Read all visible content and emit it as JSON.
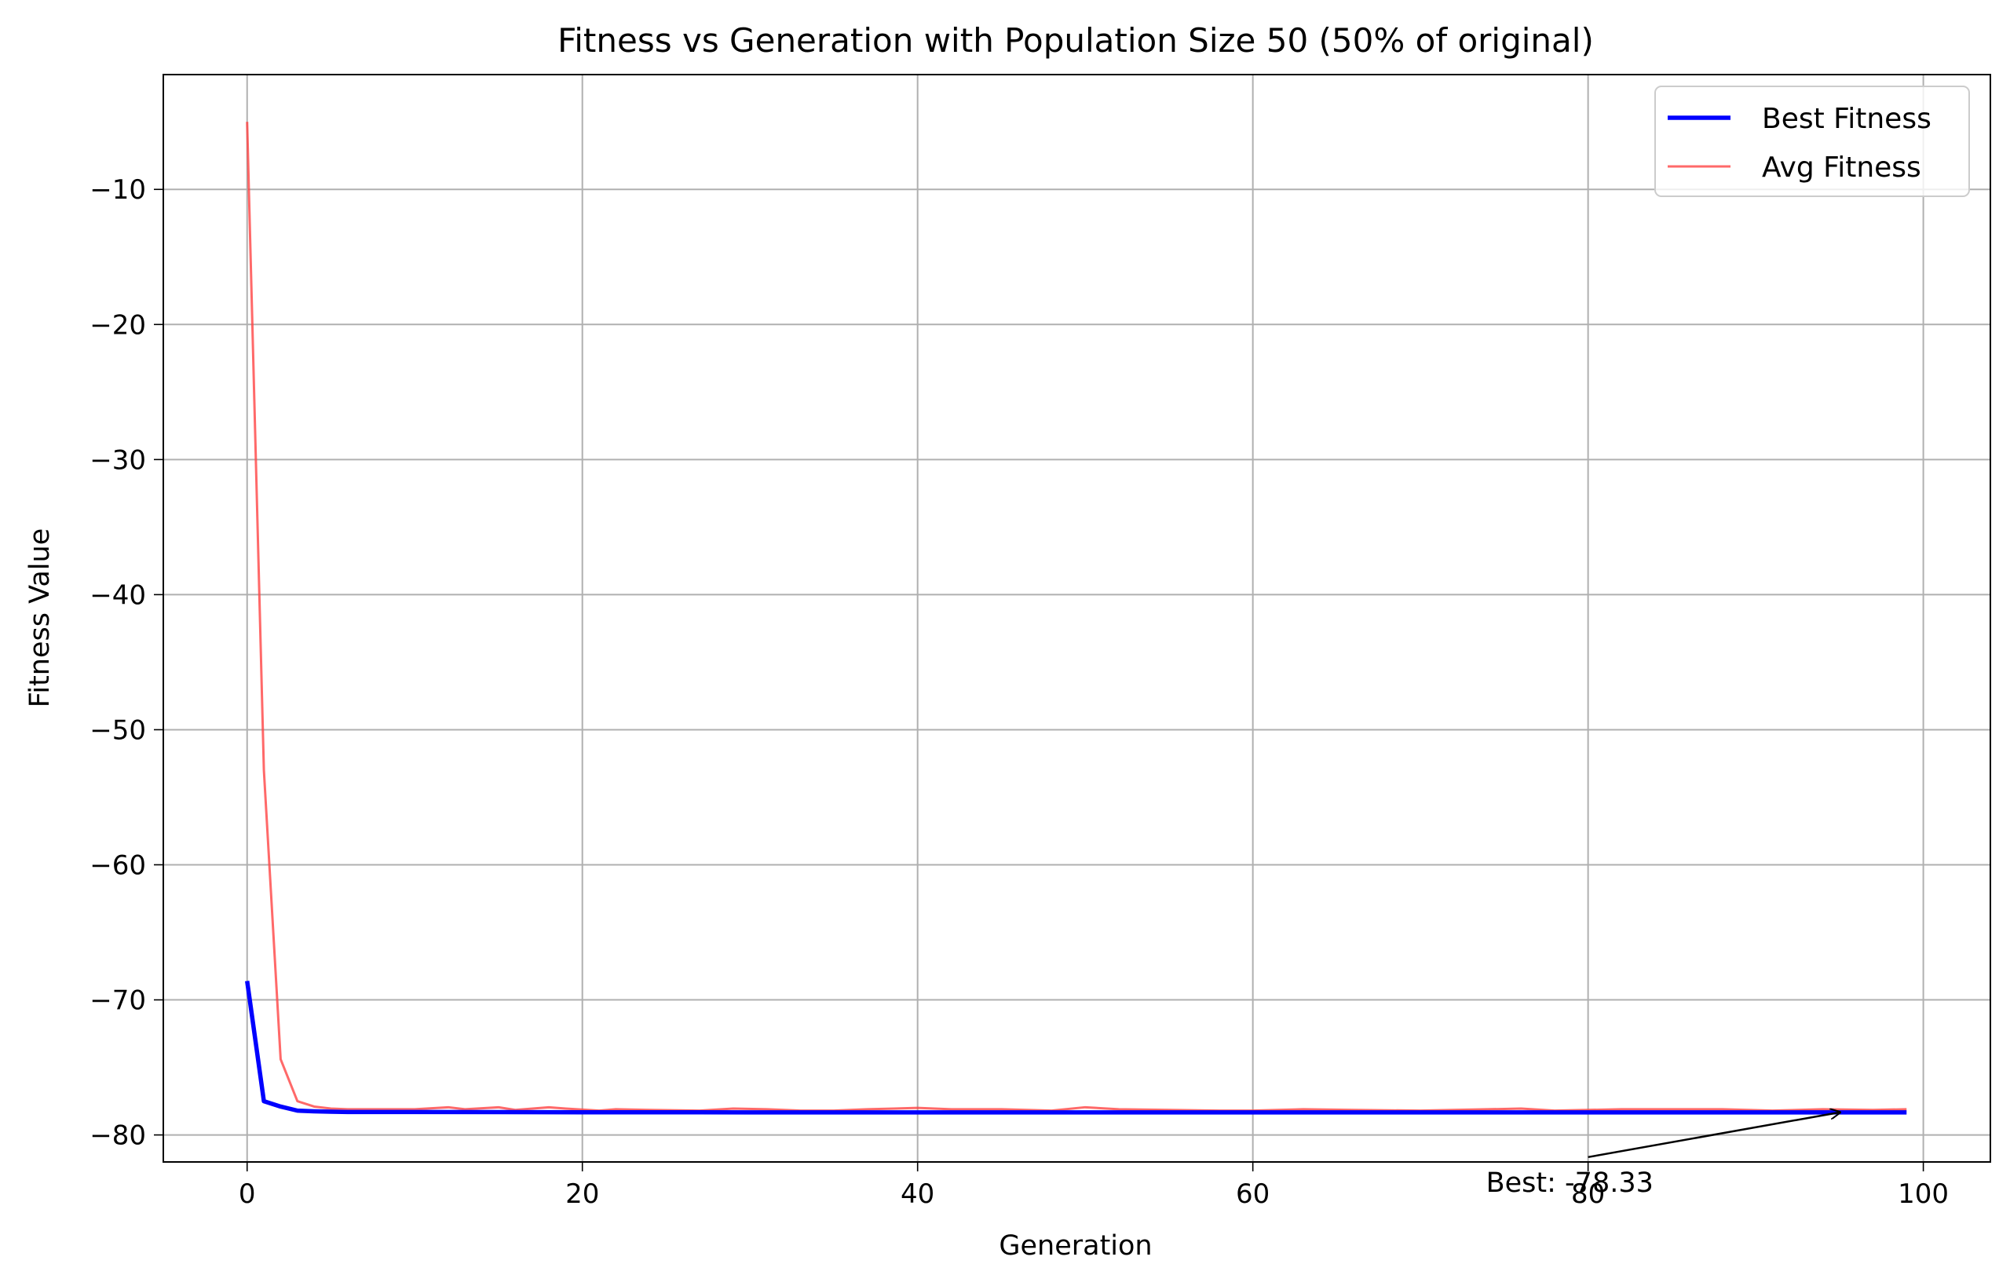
{
  "chart_data": {
    "type": "line",
    "title": "Fitness vs Generation with Population Size 50 (50% of original)",
    "xlabel": "Generation",
    "ylabel": "Fitness Value",
    "xlim": [
      -5,
      104
    ],
    "ylim": [
      -82,
      -1.5
    ],
    "xticks": [
      0,
      20,
      40,
      60,
      80,
      100
    ],
    "yticks": [
      -80,
      -70,
      -60,
      -50,
      -40,
      -30,
      -20,
      -10
    ],
    "xtick_labels": [
      "0",
      "20",
      "40",
      "60",
      "80",
      "100"
    ],
    "ytick_labels": [
      "−80",
      "−70",
      "−60",
      "−50",
      "−40",
      "−30",
      "−20",
      "−10"
    ],
    "grid": true,
    "legend": "top-right",
    "series": [
      {
        "name": "Best Fitness",
        "color": "#0000ff",
        "x": [
          0,
          1,
          2,
          3,
          4,
          5,
          6,
          8,
          10,
          15,
          20,
          30,
          40,
          50,
          60,
          70,
          80,
          90,
          99
        ],
        "y": [
          -68.6,
          -77.5,
          -77.9,
          -78.2,
          -78.25,
          -78.28,
          -78.3,
          -78.3,
          -78.3,
          -78.31,
          -78.32,
          -78.33,
          -78.33,
          -78.33,
          -78.33,
          -78.33,
          -78.33,
          -78.33,
          -78.33
        ]
      },
      {
        "name": "Avg Fitness",
        "color": "#ff4444",
        "x": [
          0,
          1,
          2,
          3,
          4,
          5,
          6,
          8,
          10,
          12,
          13,
          15,
          16,
          18,
          19,
          21,
          22,
          24,
          27,
          29,
          31,
          33,
          35,
          37,
          40,
          42,
          45,
          48,
          50,
          52,
          55,
          58,
          60,
          63,
          66,
          70,
          74,
          76,
          78,
          82,
          85,
          88,
          91,
          94,
          97,
          99
        ],
        "y": [
          -5.0,
          -53.0,
          -74.4,
          -77.5,
          -77.9,
          -78.05,
          -78.1,
          -78.1,
          -78.1,
          -77.95,
          -78.1,
          -77.95,
          -78.15,
          -77.95,
          -78.05,
          -78.2,
          -78.1,
          -78.15,
          -78.2,
          -78.05,
          -78.1,
          -78.2,
          -78.2,
          -78.1,
          -78.0,
          -78.1,
          -78.1,
          -78.2,
          -77.95,
          -78.1,
          -78.15,
          -78.2,
          -78.2,
          -78.1,
          -78.15,
          -78.2,
          -78.1,
          -78.05,
          -78.2,
          -78.1,
          -78.1,
          -78.1,
          -78.2,
          -78.1,
          -78.15,
          -78.1
        ]
      }
    ],
    "annotation": {
      "text": "Best: -78.33",
      "xy": [
        95,
        -78.33
      ],
      "text_xy": [
        80,
        -83.5
      ]
    }
  }
}
